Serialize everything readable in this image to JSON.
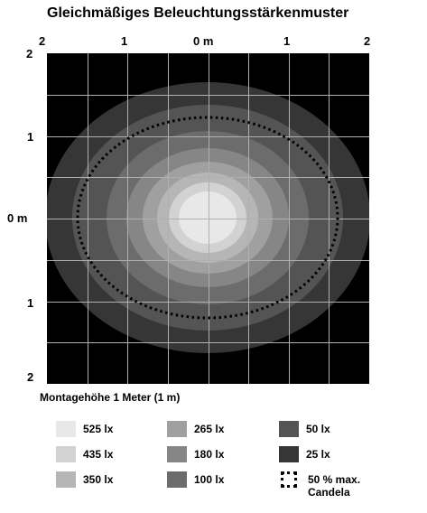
{
  "title": "Gleichmäßiges Beleuchtungsstärkenmuster",
  "x_ticks": [
    "2",
    "1",
    "0 m",
    "1",
    "2"
  ],
  "y_ticks": [
    "2",
    "1",
    "0 m",
    "1",
    "2"
  ],
  "subtitle": "Montagehöhe 1 Meter (1 m)",
  "colors": {
    "background": "#000000",
    "grid": "#b0b0b0",
    "contour_outline": "#000000"
  },
  "legend": [
    {
      "label": "525 lx",
      "color": "#e8e8e8"
    },
    {
      "label": "435 lx",
      "color": "#d2d2d2"
    },
    {
      "label": "350 lx",
      "color": "#b6b6b6"
    },
    {
      "label": "265 lx",
      "color": "#a0a0a0"
    },
    {
      "label": "180 lx",
      "color": "#868686"
    },
    {
      "label": "100 lx",
      "color": "#6c6c6c"
    },
    {
      "label": "50 lx",
      "color": "#545454"
    },
    {
      "label": "25 lx",
      "color": "#363636"
    },
    {
      "label": "50 % max. Candela",
      "icon": "dotted-square-icon"
    }
  ]
}
